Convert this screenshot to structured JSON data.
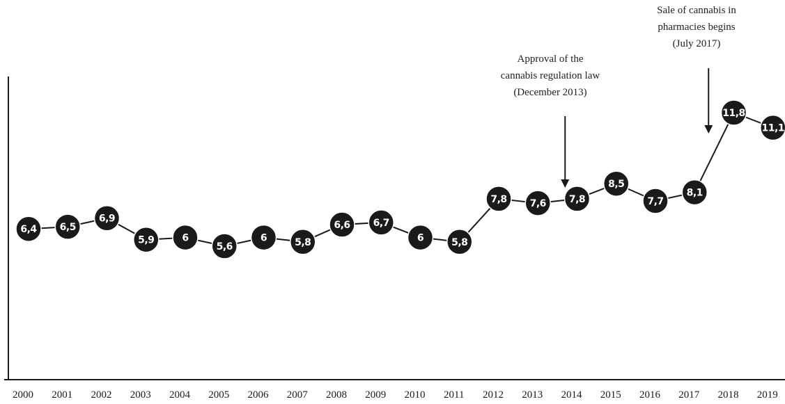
{
  "chart_data": {
    "type": "line",
    "title": "",
    "xlabel": "",
    "ylabel": "",
    "x": [
      "2000",
      "2001",
      "2002",
      "2003",
      "2004",
      "2005",
      "2006",
      "2007",
      "2008",
      "2009",
      "2010",
      "2011",
      "2012",
      "2013",
      "2014",
      "2015",
      "2016",
      "2017",
      "2018",
      "2019"
    ],
    "series": [
      {
        "values": [
          6.4,
          6.5,
          6.9,
          5.9,
          6,
          5.6,
          6,
          5.8,
          6.6,
          6.7,
          6,
          5.8,
          7.8,
          7.6,
          7.8,
          8.5,
          7.7,
          8.1,
          11.8,
          11.1
        ],
        "labels": [
          "6,4",
          "6,5",
          "6,9",
          "5,9",
          "6",
          "5,6",
          "6",
          "5,8",
          "6,6",
          "6,7",
          "6",
          "5,8",
          "7,8",
          "7,6",
          "7,8",
          "8,5",
          "7,7",
          "8,1",
          "11,8",
          "11,1"
        ]
      }
    ],
    "grid": false,
    "legend": "none",
    "annotations": [
      {
        "lines": [
          "Approval of the",
          "cannabis regulation law",
          "(December 2013)"
        ],
        "at": "2013-12"
      },
      {
        "lines": [
          "Sale of cannabis in",
          "pharmacies begins",
          "(July 2017)"
        ],
        "at": "2017-07"
      }
    ],
    "colors": {
      "marker": "#1a1a1a",
      "line": "#1a1a1a",
      "label_text": "#ffffff",
      "axis": "#1a1a1a"
    }
  }
}
